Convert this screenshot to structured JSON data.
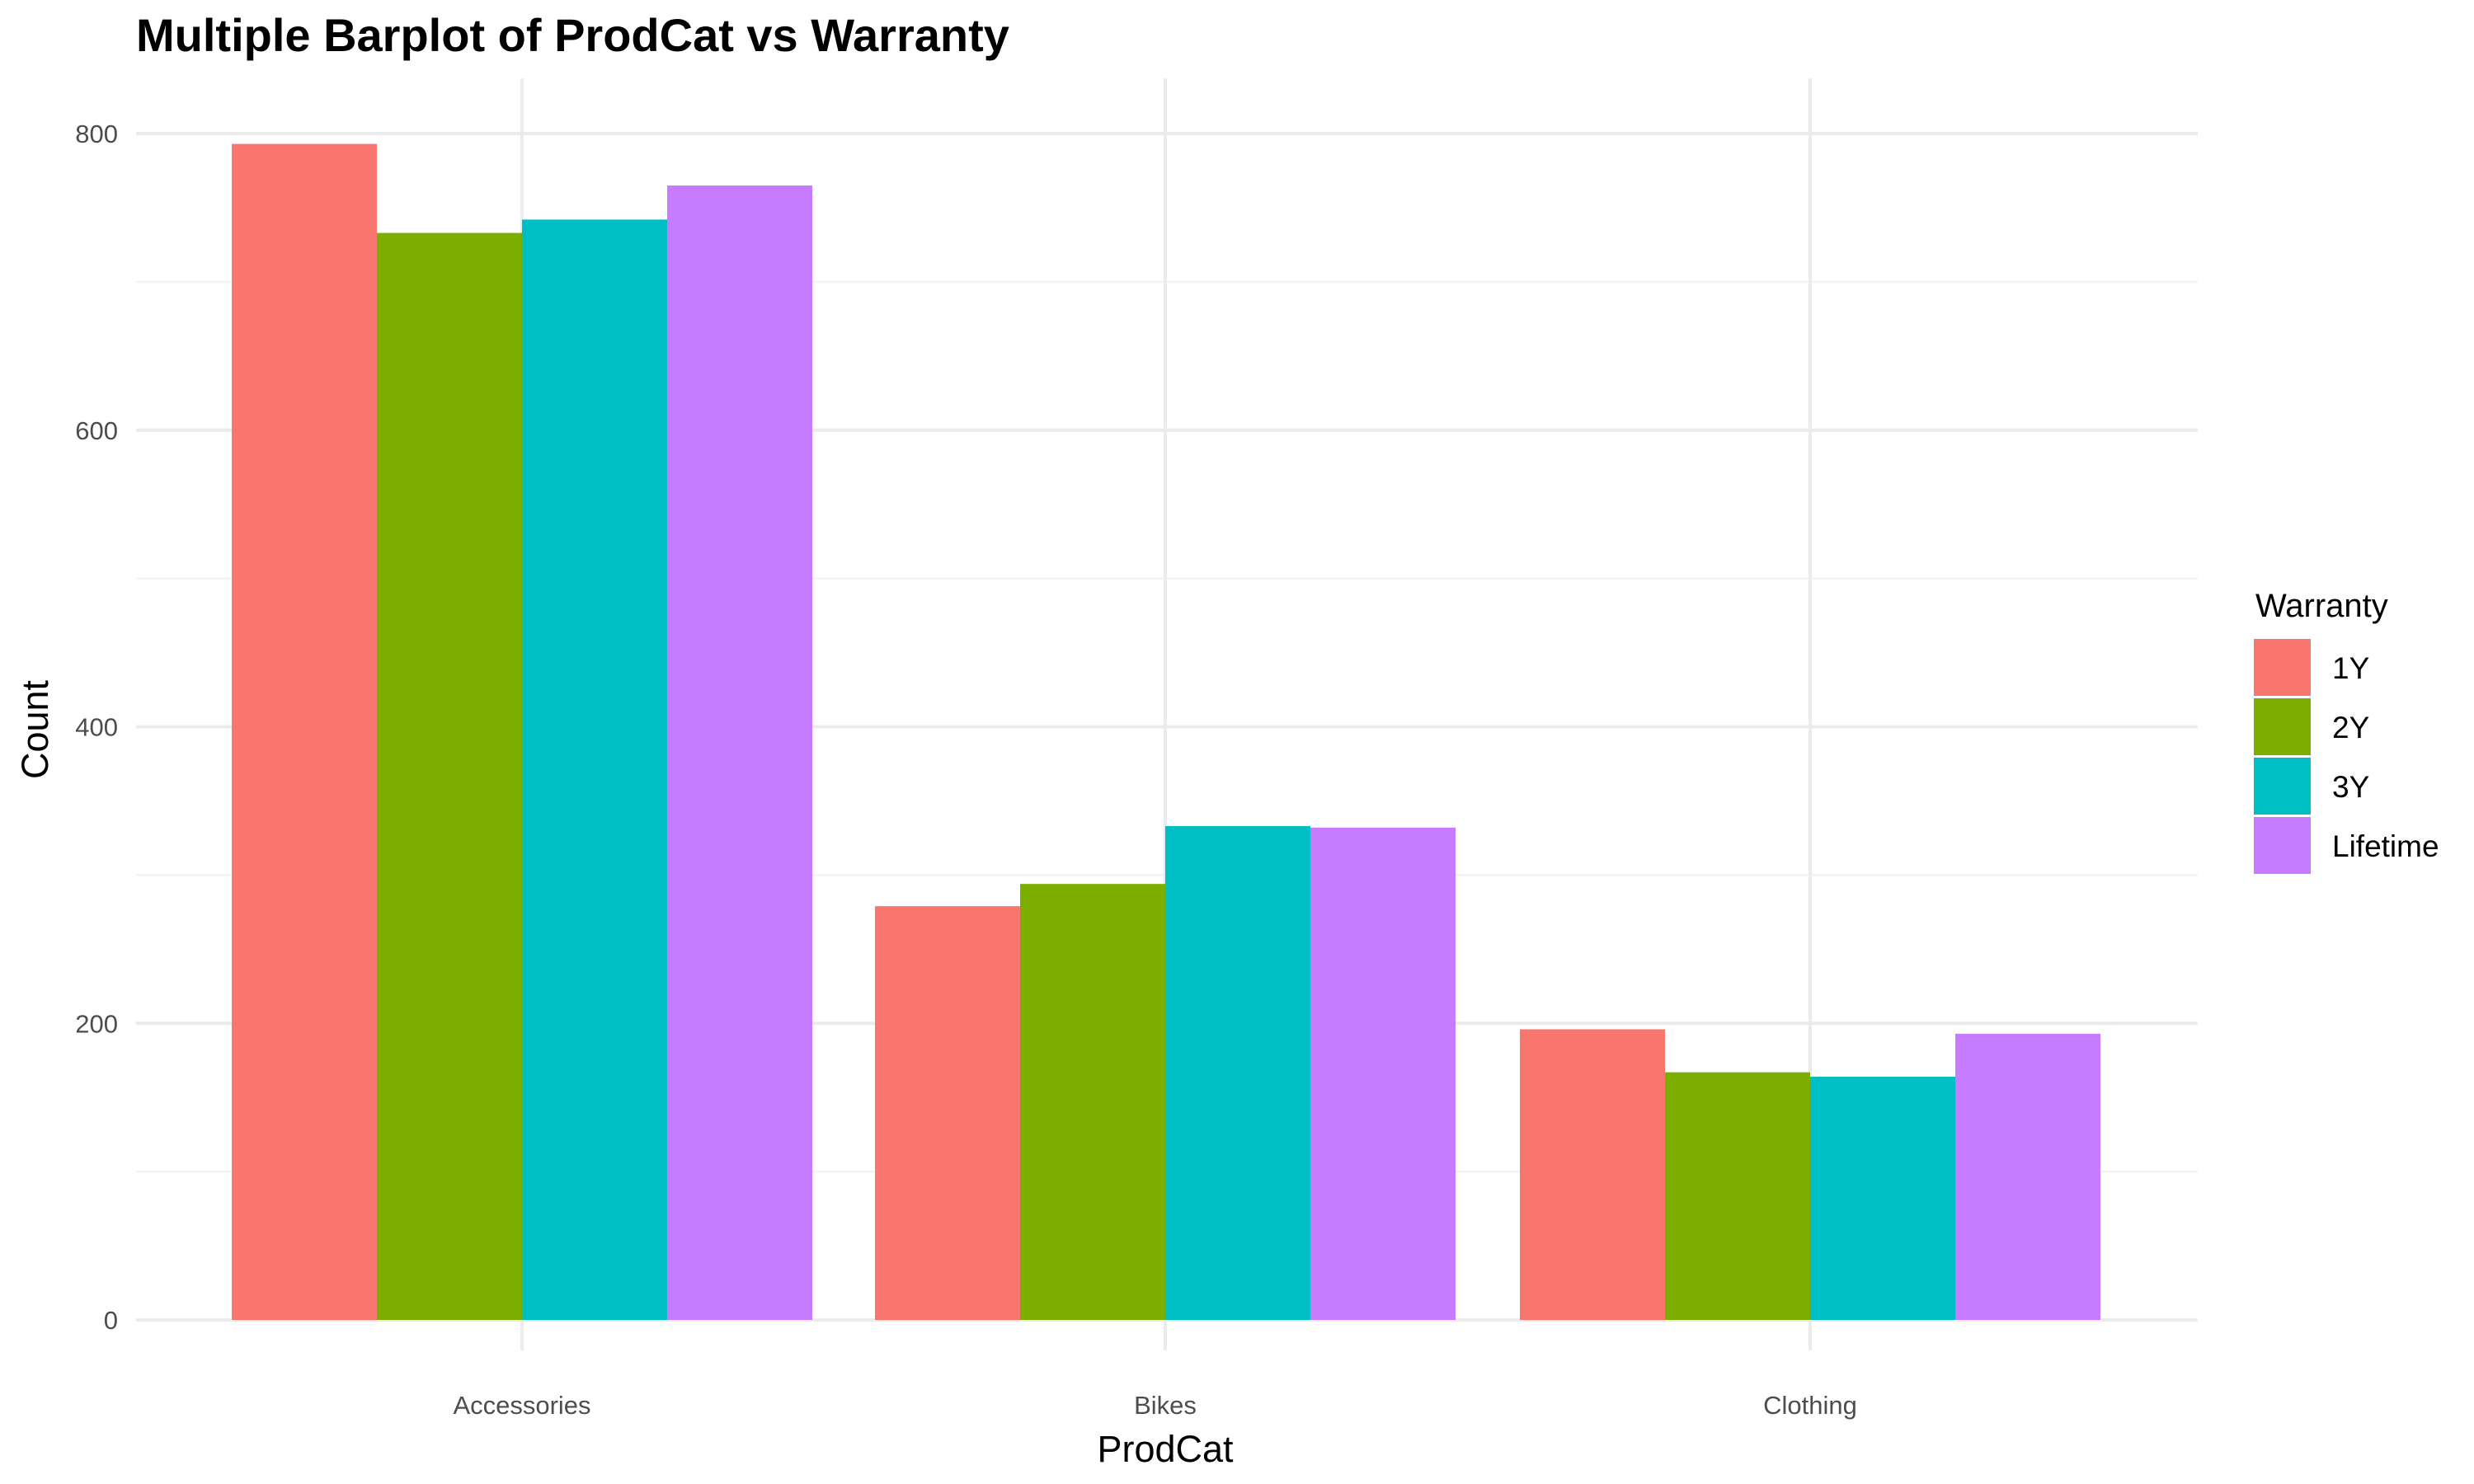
{
  "chart_data": {
    "type": "bar",
    "title": "Multiple Barplot of ProdCat vs Warranty",
    "xlabel": "ProdCat",
    "ylabel": "Count",
    "categories": [
      "Accessories",
      "Bikes",
      "Clothing"
    ],
    "ylim": [
      0,
      800
    ],
    "yticks": [
      0,
      200,
      400,
      600,
      800
    ],
    "grid": true,
    "legend": {
      "title": "Warranty",
      "placement": "right"
    },
    "series": [
      {
        "name": "1Y",
        "color": "#F8766D",
        "values": [
          793,
          279,
          196
        ]
      },
      {
        "name": "2Y",
        "color": "#7CAE00",
        "values": [
          733,
          294,
          167
        ]
      },
      {
        "name": "3Y",
        "color": "#00BFC4",
        "values": [
          742,
          333,
          164
        ]
      },
      {
        "name": "Lifetime",
        "color": "#C77CFF",
        "values": [
          765,
          332,
          193
        ]
      }
    ]
  }
}
